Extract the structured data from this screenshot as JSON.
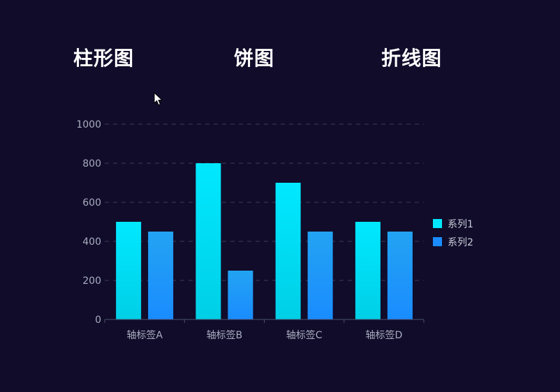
{
  "tabs": [
    {
      "label": "柱形图"
    },
    {
      "label": "饼图"
    },
    {
      "label": "折线图"
    }
  ],
  "colors": {
    "background": "#100c2a",
    "series1_top": "#00e8ff",
    "series1_bottom": "#00cfe6",
    "series2_top": "#23a3f2",
    "series2_bottom": "#1a8cff",
    "grid": "#3a3d5c",
    "axis": "#4a5270"
  },
  "chart_data": {
    "type": "bar",
    "categories": [
      "轴标签A",
      "轴标签B",
      "轴标签C",
      "轴标签D"
    ],
    "series": [
      {
        "name": "系列1",
        "values": [
          500,
          800,
          700,
          500
        ]
      },
      {
        "name": "系列2",
        "values": [
          450,
          250,
          450,
          450
        ]
      }
    ],
    "ylim": [
      0,
      1000
    ],
    "yticks": [
      0,
      200,
      400,
      600,
      800,
      1000
    ],
    "grid": true,
    "legend_position": "right"
  }
}
